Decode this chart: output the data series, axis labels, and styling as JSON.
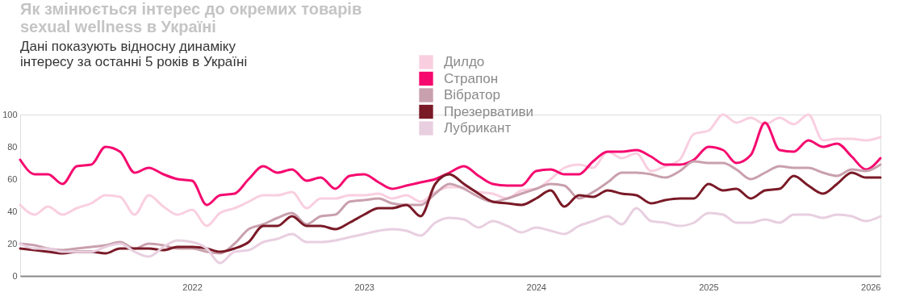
{
  "chart_data": {
    "type": "line",
    "title": "Як змінюється інтерес до окремих товарів\nsexual wellness в Україні",
    "subtitle": "Дані показують відносну динаміку\nінтересу за останні 5 років в Україні",
    "x": [
      "2021-01",
      "2021-02",
      "2021-03",
      "2021-04",
      "2021-05",
      "2021-06",
      "2021-07",
      "2021-08",
      "2021-09",
      "2021-10",
      "2021-11",
      "2021-12",
      "2022-01",
      "2022-02",
      "2022-03",
      "2022-04",
      "2022-05",
      "2022-06",
      "2022-07",
      "2022-08",
      "2022-09",
      "2022-10",
      "2022-11",
      "2022-12",
      "2023-01",
      "2023-02",
      "2023-03",
      "2023-04",
      "2023-05",
      "2023-06",
      "2023-07",
      "2023-08",
      "2023-09",
      "2023-10",
      "2023-11",
      "2023-12",
      "2024-01",
      "2024-02",
      "2024-03",
      "2024-04",
      "2024-05",
      "2024-06",
      "2024-07",
      "2024-08",
      "2024-09",
      "2024-10",
      "2024-11",
      "2024-12",
      "2025-01",
      "2025-02",
      "2025-03",
      "2025-04",
      "2025-05",
      "2025-06",
      "2025-07",
      "2025-08",
      "2025-09",
      "2025-10",
      "2025-11",
      "2025-12",
      "2026-01"
    ],
    "series": [
      {
        "name": "Дилдо",
        "color": "#f9cfe0",
        "values": [
          44,
          38,
          43,
          38,
          42,
          45,
          50,
          49,
          38,
          50,
          43,
          38,
          41,
          31,
          39,
          42,
          46,
          50,
          50,
          52,
          42,
          48,
          48,
          50,
          50,
          51,
          48,
          50,
          46,
          52,
          55,
          55,
          52,
          51,
          48,
          53,
          54,
          60,
          67,
          69,
          67,
          77,
          73,
          76,
          65,
          68,
          72,
          88,
          90,
          100,
          95,
          98,
          94,
          98,
          94,
          100,
          84,
          85,
          85,
          84,
          86
        ]
      },
      {
        "name": "Страпон",
        "color": "#f5096f",
        "values": [
          72,
          63,
          63,
          57,
          68,
          69,
          80,
          77,
          64,
          67,
          63,
          60,
          59,
          44,
          50,
          51,
          60,
          68,
          64,
          66,
          59,
          61,
          54,
          62,
          63,
          58,
          54,
          56,
          58,
          60,
          64,
          68,
          62,
          57,
          56,
          56,
          65,
          66,
          63,
          63,
          71,
          77,
          77,
          78,
          74,
          69,
          69,
          72,
          80,
          78,
          70,
          75,
          95,
          78,
          77,
          84,
          80,
          82,
          74,
          66,
          73
        ]
      },
      {
        "name": "Вібратор",
        "color": "#c9a0ad",
        "values": [
          20,
          19,
          17,
          16,
          17,
          18,
          19,
          21,
          17,
          20,
          19,
          17,
          17,
          15,
          14,
          20,
          29,
          32,
          36,
          39,
          32,
          37,
          38,
          46,
          47,
          48,
          45,
          44,
          44,
          51,
          57,
          54,
          49,
          46,
          48,
          51,
          54,
          57,
          56,
          48,
          52,
          58,
          64,
          64,
          63,
          61,
          65,
          71,
          70,
          70,
          66,
          60,
          64,
          68,
          67,
          67,
          64,
          62,
          66,
          65,
          69
        ]
      },
      {
        "name": "Презервативи",
        "color": "#7a1a27",
        "values": [
          17,
          16,
          15,
          14,
          15,
          15,
          14,
          17,
          17,
          17,
          16,
          18,
          18,
          17,
          15,
          17,
          21,
          31,
          31,
          37,
          31,
          31,
          29,
          33,
          38,
          42,
          42,
          44,
          37,
          57,
          63,
          57,
          51,
          46,
          45,
          44,
          48,
          53,
          43,
          50,
          49,
          53,
          51,
          50,
          45,
          47,
          48,
          48,
          57,
          53,
          54,
          48,
          53,
          54,
          62,
          56,
          51,
          57,
          64,
          61,
          61
        ]
      },
      {
        "name": "Лубрикант",
        "color": "#e8cfe0",
        "values": [
          20,
          17,
          17,
          15,
          15,
          15,
          18,
          20,
          15,
          12,
          18,
          22,
          21,
          17,
          8,
          15,
          16,
          21,
          23,
          26,
          21,
          21,
          22,
          24,
          26,
          28,
          29,
          28,
          25,
          33,
          36,
          35,
          30,
          34,
          31,
          27,
          30,
          28,
          26,
          31,
          34,
          37,
          32,
          42,
          34,
          33,
          31,
          33,
          39,
          38,
          33,
          33,
          35,
          33,
          38,
          38,
          36,
          38,
          37,
          34,
          37
        ]
      }
    ],
    "xlim": [
      "2021-01",
      "2026-01"
    ],
    "xticks": [
      {
        "value": "2022-01",
        "label": "2022"
      },
      {
        "value": "2023-01",
        "label": "2023"
      },
      {
        "value": "2024-01",
        "label": "2024"
      },
      {
        "value": "2025-01",
        "label": "2025"
      },
      {
        "value": "2026-01",
        "label": "2026"
      }
    ],
    "ylim": [
      0,
      100
    ],
    "yticks": [
      0,
      20,
      40,
      60,
      80,
      100
    ],
    "grid": false,
    "legend": "top",
    "marker": "none",
    "line_style": "solid"
  }
}
